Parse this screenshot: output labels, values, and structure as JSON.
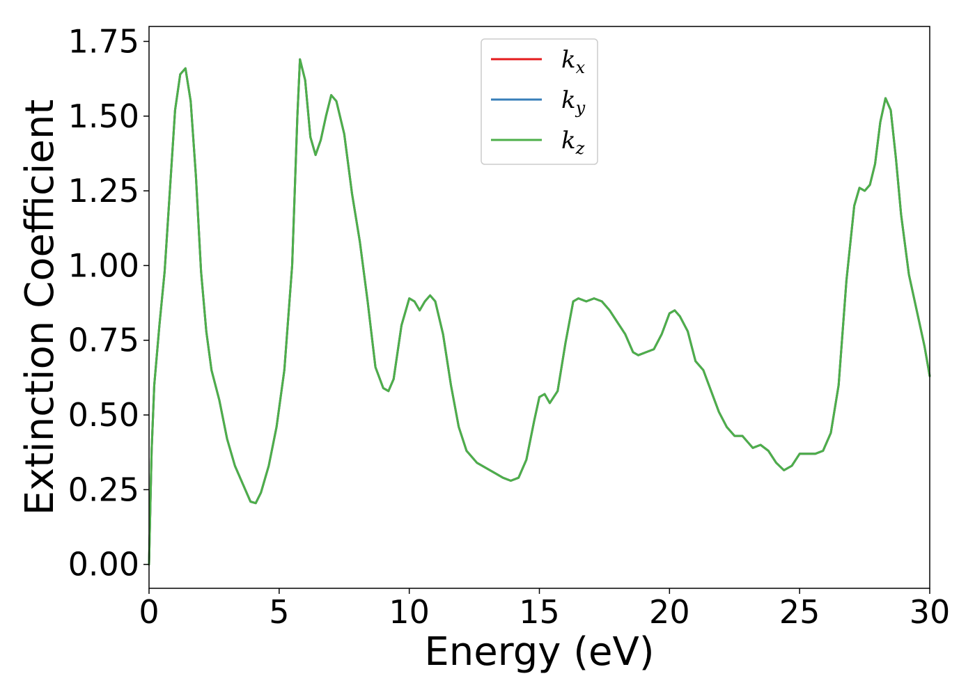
{
  "chart_data": {
    "type": "line",
    "xlabel": "Energy (eV)",
    "ylabel": "Extinction Coefficient",
    "xlim": [
      0,
      30
    ],
    "ylim": [
      -0.08,
      1.8
    ],
    "xticks": [
      0,
      5,
      10,
      15,
      20,
      25,
      30
    ],
    "xtick_labels": [
      "0",
      "5",
      "10",
      "15",
      "20",
      "25",
      "30"
    ],
    "yticks": [
      0.0,
      0.25,
      0.5,
      0.75,
      1.0,
      1.25,
      1.5,
      1.75
    ],
    "ytick_labels": [
      "0.00",
      "0.25",
      "0.50",
      "0.75",
      "1.00",
      "1.25",
      "1.50",
      "1.75"
    ],
    "grid": false,
    "legend_position": "top-center",
    "x": [
      0,
      0.1,
      0.2,
      0.4,
      0.6,
      0.8,
      1.0,
      1.2,
      1.4,
      1.6,
      1.8,
      2.0,
      2.2,
      2.4,
      2.7,
      3.0,
      3.3,
      3.6,
      3.9,
      4.1,
      4.3,
      4.6,
      4.9,
      5.2,
      5.5,
      5.7,
      5.8,
      6.0,
      6.2,
      6.4,
      6.6,
      6.8,
      7.0,
      7.2,
      7.5,
      7.8,
      8.1,
      8.4,
      8.7,
      9.0,
      9.2,
      9.4,
      9.7,
      10.0,
      10.2,
      10.4,
      10.6,
      10.8,
      11.0,
      11.3,
      11.6,
      11.9,
      12.2,
      12.6,
      13.0,
      13.3,
      13.6,
      13.9,
      14.2,
      14.5,
      14.8,
      15.0,
      15.2,
      15.4,
      15.7,
      16.0,
      16.3,
      16.5,
      16.8,
      17.1,
      17.4,
      17.7,
      18.0,
      18.3,
      18.6,
      18.8,
      19.1,
      19.4,
      19.7,
      20.0,
      20.2,
      20.4,
      20.7,
      21.0,
      21.3,
      21.6,
      21.9,
      22.2,
      22.5,
      22.8,
      23.0,
      23.2,
      23.5,
      23.8,
      24.1,
      24.4,
      24.7,
      25.0,
      25.3,
      25.6,
      25.9,
      26.2,
      26.5,
      26.8,
      27.1,
      27.3,
      27.5,
      27.7,
      27.9,
      28.1,
      28.3,
      28.5,
      28.7,
      28.9,
      29.2,
      29.5,
      29.8,
      30.0
    ],
    "series": [
      {
        "name": "k_x",
        "color": "#e41a1c",
        "values": [
          0.0,
          0.38,
          0.6,
          0.8,
          0.98,
          1.25,
          1.52,
          1.64,
          1.66,
          1.55,
          1.3,
          0.98,
          0.78,
          0.65,
          0.55,
          0.42,
          0.33,
          0.27,
          0.21,
          0.205,
          0.24,
          0.33,
          0.46,
          0.65,
          1.0,
          1.5,
          1.69,
          1.62,
          1.43,
          1.37,
          1.42,
          1.5,
          1.57,
          1.55,
          1.44,
          1.24,
          1.08,
          0.88,
          0.66,
          0.59,
          0.58,
          0.62,
          0.8,
          0.89,
          0.88,
          0.85,
          0.88,
          0.9,
          0.88,
          0.77,
          0.6,
          0.46,
          0.38,
          0.34,
          0.32,
          0.305,
          0.29,
          0.28,
          0.29,
          0.35,
          0.48,
          0.56,
          0.57,
          0.54,
          0.58,
          0.74,
          0.88,
          0.89,
          0.88,
          0.89,
          0.88,
          0.85,
          0.81,
          0.77,
          0.71,
          0.7,
          0.71,
          0.72,
          0.77,
          0.84,
          0.85,
          0.83,
          0.78,
          0.68,
          0.65,
          0.58,
          0.51,
          0.46,
          0.43,
          0.43,
          0.41,
          0.39,
          0.4,
          0.38,
          0.34,
          0.315,
          0.33,
          0.37,
          0.37,
          0.37,
          0.38,
          0.44,
          0.6,
          0.95,
          1.2,
          1.26,
          1.25,
          1.27,
          1.34,
          1.48,
          1.56,
          1.52,
          1.36,
          1.17,
          0.97,
          0.85,
          0.73,
          0.63
        ]
      },
      {
        "name": "k_y",
        "color": "#377eb8",
        "values": [
          0.0,
          0.38,
          0.6,
          0.8,
          0.98,
          1.25,
          1.52,
          1.64,
          1.66,
          1.55,
          1.3,
          0.98,
          0.78,
          0.65,
          0.55,
          0.42,
          0.33,
          0.27,
          0.21,
          0.205,
          0.24,
          0.33,
          0.46,
          0.65,
          1.0,
          1.5,
          1.69,
          1.62,
          1.43,
          1.37,
          1.42,
          1.5,
          1.57,
          1.55,
          1.44,
          1.24,
          1.08,
          0.88,
          0.66,
          0.59,
          0.58,
          0.62,
          0.8,
          0.89,
          0.88,
          0.85,
          0.88,
          0.9,
          0.88,
          0.77,
          0.6,
          0.46,
          0.38,
          0.34,
          0.32,
          0.305,
          0.29,
          0.28,
          0.29,
          0.35,
          0.48,
          0.56,
          0.57,
          0.54,
          0.58,
          0.74,
          0.88,
          0.89,
          0.88,
          0.89,
          0.88,
          0.85,
          0.81,
          0.77,
          0.71,
          0.7,
          0.71,
          0.72,
          0.77,
          0.84,
          0.85,
          0.83,
          0.78,
          0.68,
          0.65,
          0.58,
          0.51,
          0.46,
          0.43,
          0.43,
          0.41,
          0.39,
          0.4,
          0.38,
          0.34,
          0.315,
          0.33,
          0.37,
          0.37,
          0.37,
          0.38,
          0.44,
          0.6,
          0.95,
          1.2,
          1.26,
          1.25,
          1.27,
          1.34,
          1.48,
          1.56,
          1.52,
          1.36,
          1.17,
          0.97,
          0.85,
          0.73,
          0.63
        ]
      },
      {
        "name": "k_z",
        "color": "#4daf4a",
        "values": [
          0.0,
          0.38,
          0.6,
          0.8,
          0.98,
          1.25,
          1.52,
          1.64,
          1.66,
          1.55,
          1.3,
          0.98,
          0.78,
          0.65,
          0.55,
          0.42,
          0.33,
          0.27,
          0.21,
          0.205,
          0.24,
          0.33,
          0.46,
          0.65,
          1.0,
          1.5,
          1.69,
          1.62,
          1.43,
          1.37,
          1.42,
          1.5,
          1.57,
          1.55,
          1.44,
          1.24,
          1.08,
          0.88,
          0.66,
          0.59,
          0.58,
          0.62,
          0.8,
          0.89,
          0.88,
          0.85,
          0.88,
          0.9,
          0.88,
          0.77,
          0.6,
          0.46,
          0.38,
          0.34,
          0.32,
          0.305,
          0.29,
          0.28,
          0.29,
          0.35,
          0.48,
          0.56,
          0.57,
          0.54,
          0.58,
          0.74,
          0.88,
          0.89,
          0.88,
          0.89,
          0.88,
          0.85,
          0.81,
          0.77,
          0.71,
          0.7,
          0.71,
          0.72,
          0.77,
          0.84,
          0.85,
          0.83,
          0.78,
          0.68,
          0.65,
          0.58,
          0.51,
          0.46,
          0.43,
          0.43,
          0.41,
          0.39,
          0.4,
          0.38,
          0.34,
          0.315,
          0.33,
          0.37,
          0.37,
          0.37,
          0.38,
          0.44,
          0.6,
          0.95,
          1.2,
          1.26,
          1.25,
          1.27,
          1.34,
          1.48,
          1.56,
          1.52,
          1.36,
          1.17,
          0.97,
          0.85,
          0.73,
          0.63
        ]
      }
    ],
    "legend": [
      {
        "base": "k",
        "sub": "x"
      },
      {
        "base": "k",
        "sub": "y"
      },
      {
        "base": "k",
        "sub": "z"
      }
    ]
  }
}
